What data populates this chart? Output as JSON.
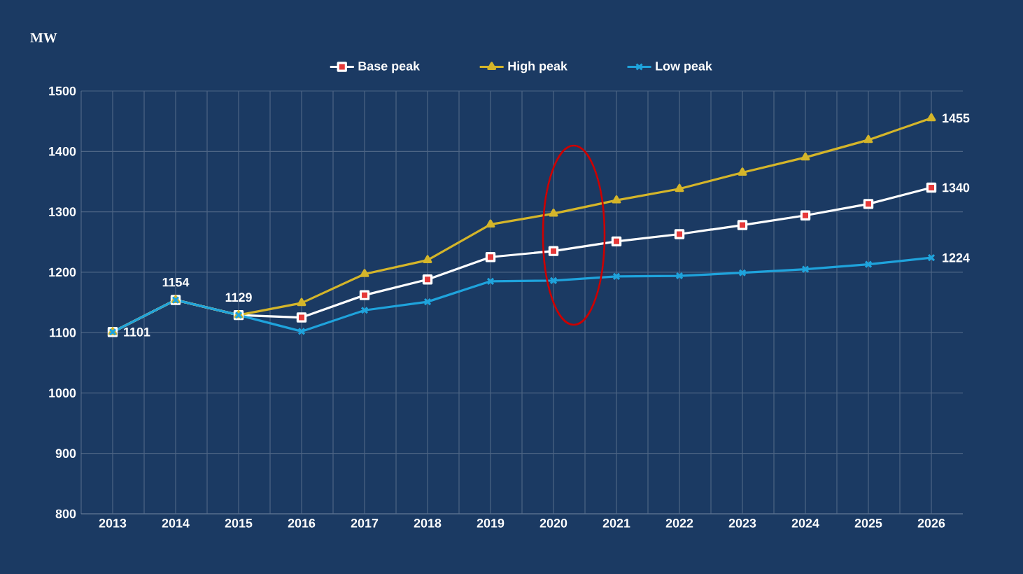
{
  "chart_data": {
    "type": "line",
    "ylabel": "MW",
    "categories": [
      "2013",
      "2014",
      "2015",
      "2016",
      "2017",
      "2018",
      "2019",
      "2020",
      "2021",
      "2022",
      "2023",
      "2024",
      "2025",
      "2026"
    ],
    "series": [
      {
        "name": "Base peak",
        "color": "#ffffff",
        "marker": "square",
        "values": [
          1101,
          1154,
          1129,
          1125,
          1162,
          1188,
          1225,
          1235,
          1251,
          1263,
          1278,
          1294,
          1313,
          1340
        ],
        "value_labels": [
          "1101",
          "1154",
          "1129",
          null,
          null,
          null,
          null,
          null,
          null,
          null,
          null,
          null,
          null,
          "1340"
        ]
      },
      {
        "name": "High peak",
        "color": "#d4b52a",
        "marker": "triangle",
        "values": [
          1101,
          1154,
          1129,
          1149,
          1197,
          1220,
          1279,
          1297,
          1319,
          1338,
          1365,
          1390,
          1419,
          1455
        ],
        "value_labels": [
          null,
          null,
          null,
          null,
          null,
          null,
          null,
          null,
          null,
          null,
          null,
          null,
          null,
          "1455"
        ]
      },
      {
        "name": "Low peak",
        "color": "#1fa3dc",
        "marker": "cross",
        "values": [
          1101,
          1154,
          1129,
          1102,
          1137,
          1151,
          1185,
          1186,
          1193,
          1194,
          1199,
          1205,
          1213,
          1224
        ],
        "value_labels": [
          null,
          null,
          null,
          null,
          null,
          null,
          null,
          null,
          null,
          null,
          null,
          null,
          null,
          "1224"
        ]
      }
    ],
    "ylim": [
      800,
      1500
    ],
    "yticks": [
      800,
      900,
      1000,
      1100,
      1200,
      1300,
      1400,
      1500
    ],
    "grid": true,
    "legend": "top"
  }
}
